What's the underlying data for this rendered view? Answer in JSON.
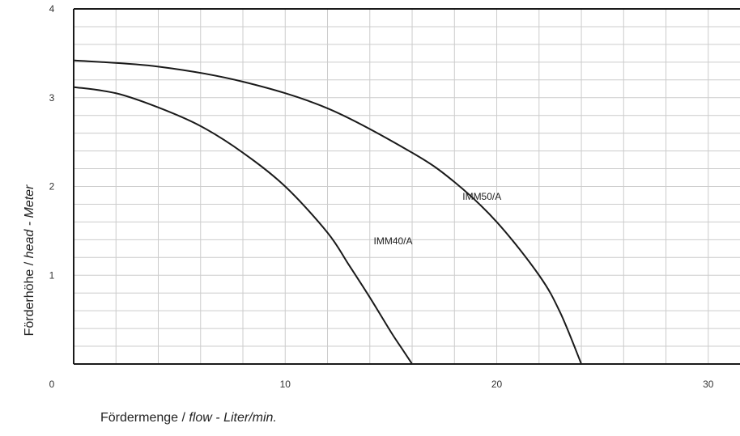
{
  "chart_data": {
    "type": "line",
    "xlim": [
      0,
      31.5
    ],
    "ylim": [
      0,
      4
    ],
    "x_ticks": [
      0,
      10,
      20,
      30
    ],
    "y_ticks": [
      1,
      2,
      3,
      4
    ],
    "x_minor_step": 2,
    "y_minor_step": 0.2,
    "grid": true,
    "xlabel_parts": [
      "Fördermenge / ",
      "flow - Liter/min."
    ],
    "ylabel_parts": [
      "Förderhöhe / ",
      "head - Meter"
    ],
    "series": [
      {
        "name": "IMM40/A",
        "x": [
          0,
          2,
          4,
          6,
          8,
          10,
          12,
          13,
          14,
          15,
          15.5,
          16
        ],
        "y": [
          3.12,
          3.05,
          2.89,
          2.68,
          2.38,
          2.0,
          1.48,
          1.12,
          0.75,
          0.36,
          0.18,
          0
        ],
        "label_at": [
          15.1,
          1.35
        ]
      },
      {
        "name": "IMM50/A",
        "x": [
          0,
          4,
          8,
          12,
          16,
          18,
          20,
          22,
          23,
          24
        ],
        "y": [
          3.42,
          3.35,
          3.18,
          2.88,
          2.38,
          2.05,
          1.6,
          1.0,
          0.58,
          0
        ],
        "label_at": [
          19.3,
          1.85
        ]
      }
    ],
    "colors": {
      "line": "#1a1a1a",
      "grid": "#cccccc",
      "frame": "#1a1a1a"
    }
  }
}
